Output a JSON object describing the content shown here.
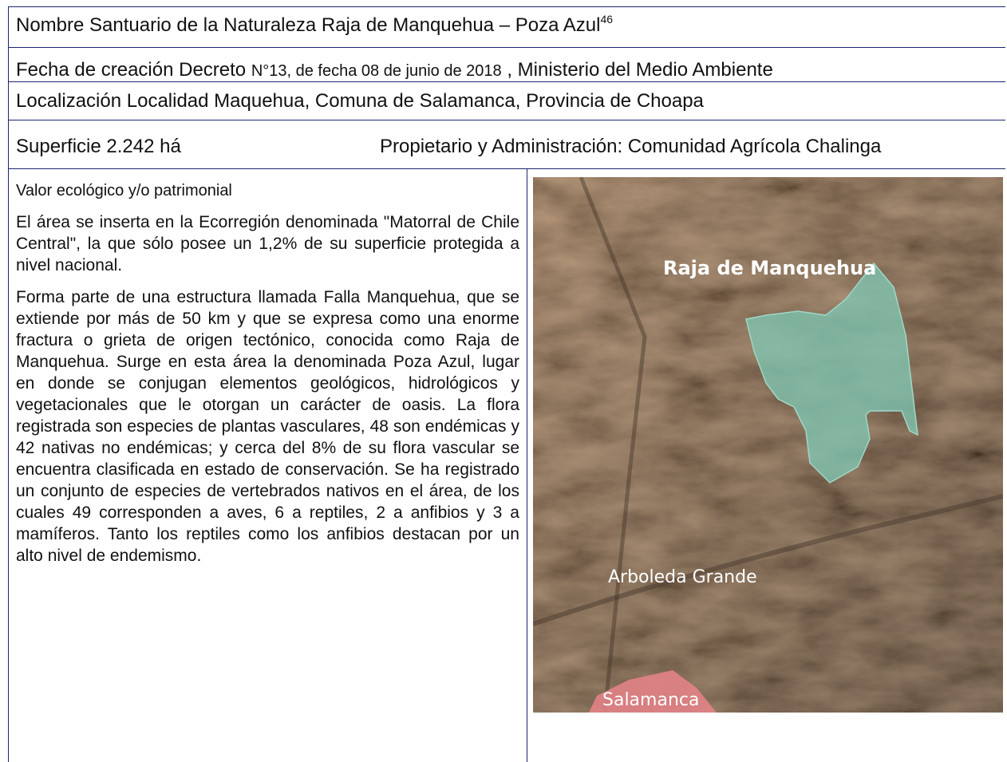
{
  "header": {
    "name": "Nombre Santuario de la Naturaleza Raja de Manquehua – Poza Azul",
    "name_sup": "46",
    "date_prefix": "Fecha de creación Decreto",
    "date_decree": "N°13, de fecha 08 de junio de 2018",
    "date_suffix": ", Ministerio del Medio Ambiente",
    "location": "Localización Localidad Maquehua, Comuna de Salamanca, Provincia de Choapa",
    "surface": "Superficie 2.242 há",
    "owner": "Propietario y Administración: Comunidad Agrícola Chalinga"
  },
  "body": {
    "heading": "Valor ecológico y/o patrimonial",
    "paragraphs": [
      "El área se inserta en la Ecorregión denominada \"Matorral de Chile Central\", la que sólo posee un 1,2% de su superficie protegida a nivel nacional.",
      "Forma parte de una estructura llamada Falla Manquehua, que se extiende por más de 50 km y que se expresa como una enorme fractura o grieta de origen tectónico, conocida como Raja de Manquehua. Surge en esta área la denominada Poza Azul, lugar en donde se conjugan elementos geológicos, hidrológicos y vegetacionales que le otorgan un carácter de oasis. La flora registrada son especies de plantas vasculares, 48 son endémicas y 42 nativas no endémicas; y cerca del 8% de su flora vascular se encuentra clasificada en estado de conservación. Se ha registrado un conjunto de especies de vertebrados nativos en el área, de los cuales 49 corresponden a aves, 6 a reptiles, 2 a anfibios y 3 a mamíferos. Tanto los reptiles como los anfibios destacan por un alto nivel de endemismo."
    ]
  },
  "map": {
    "labels": [
      "Raja de Manquehua",
      "Arboleda Grande",
      "Salamanca"
    ]
  }
}
